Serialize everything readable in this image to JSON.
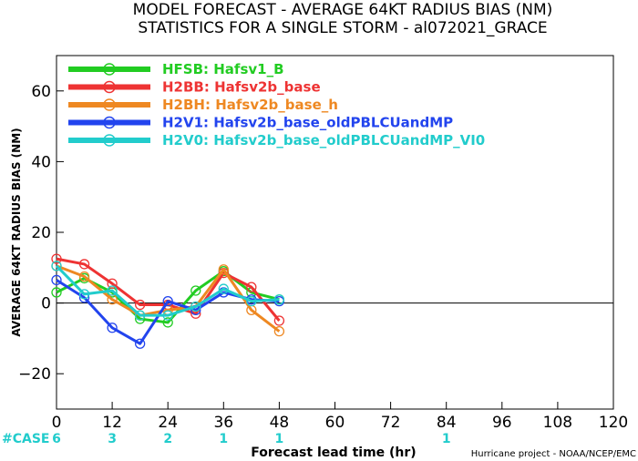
{
  "chart_data": {
    "type": "line",
    "title": "MODEL FORECAST - AVERAGE 64KT RADIUS BIAS (NM)",
    "subtitle": "STATISTICS FOR A SINGLE STORM - al072021_GRACE",
    "xlabel": "Forecast lead time (hr)",
    "ylabel": "AVERAGE 64KT RADIUS BIAS (NM)",
    "xlim": [
      0,
      120
    ],
    "ylim": [
      -30,
      70
    ],
    "xticks": [
      "0",
      "12",
      "24",
      "36",
      "48",
      "60",
      "72",
      "84",
      "96",
      "108",
      "120"
    ],
    "yticks": [
      "60",
      "40",
      "20",
      "0",
      "−20"
    ],
    "zero_line": true,
    "legend_position": "top-left",
    "series": [
      {
        "name": "HFSB: Hafsv1_B",
        "color": "#22cc22",
        "x": [
          0,
          6,
          12,
          18,
          24,
          30,
          36,
          42,
          48
        ],
        "y": [
          3,
          7,
          3,
          -4.5,
          -5.5,
          3.5,
          9,
          3,
          1
        ]
      },
      {
        "name": "H2BB: Hafsv2b_base",
        "color": "#ee3333",
        "x": [
          0,
          6,
          12,
          18,
          24,
          30,
          36,
          42,
          48
        ],
        "y": [
          12.5,
          11,
          5.5,
          -0.5,
          -0.5,
          -3,
          8.5,
          4.5,
          -5
        ]
      },
      {
        "name": "H2BH: Hafsv2b_base_h",
        "color": "#ee8822",
        "x": [
          0,
          6,
          12,
          18,
          24,
          30,
          36,
          42,
          48
        ],
        "y": [
          10.5,
          7.5,
          1,
          -3.5,
          -2,
          -1,
          9.5,
          -2,
          -8
        ]
      },
      {
        "name": "H2V1: Hafsv2b_base_oldPBLCUandMP",
        "color": "#2244ee",
        "x": [
          0,
          6,
          12,
          18,
          24,
          30,
          36,
          42,
          48
        ],
        "y": [
          6.5,
          1.5,
          -7,
          -11.5,
          0.5,
          -2,
          3,
          1,
          0.5
        ]
      },
      {
        "name": "H2V0: Hafsv2b_base_oldPBLCUandMP_VI0",
        "color": "#22cccc",
        "x": [
          0,
          6,
          12,
          18,
          24,
          30,
          36,
          42,
          48
        ],
        "y": [
          10.5,
          2.5,
          3.5,
          -3.5,
          -3.5,
          -1,
          4,
          0.5,
          1
        ]
      }
    ],
    "case_label": "#CASE",
    "case_counts": [
      {
        "x": 0,
        "text": "6"
      },
      {
        "x": 12,
        "text": "3"
      },
      {
        "x": 24,
        "text": "2"
      },
      {
        "x": 36,
        "text": "1"
      },
      {
        "x": 48,
        "text": "1"
      },
      {
        "x": 84,
        "text": "1"
      }
    ],
    "case_color": "#22cccc",
    "credit": "Hurricane project - NOAA/NCEP/EMC"
  }
}
